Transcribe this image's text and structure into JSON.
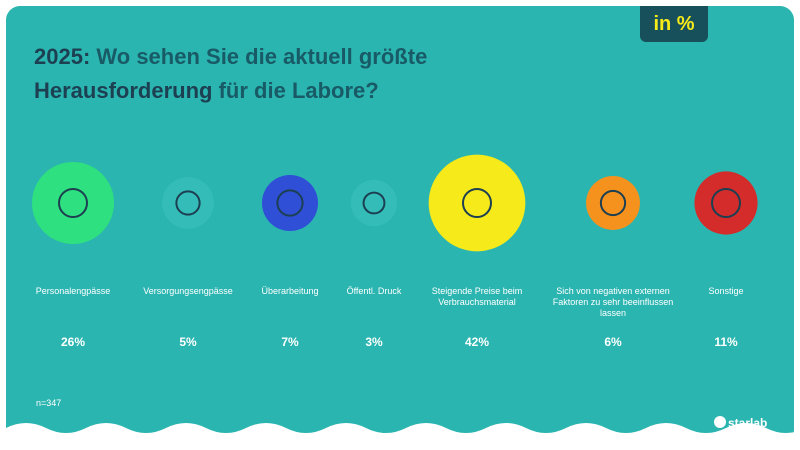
{
  "chart_data": {
    "type": "bubble",
    "title": [
      "2025:",
      "Wo sehen Sie die aktuell größte",
      "Herausforderung",
      "für die Labore?"
    ],
    "unit_badge": "in %",
    "categories": [
      "Personalengpässe",
      "Versorgungsengpässe",
      "Überarbeitung",
      "Öffentl. Druck",
      "Steigende Preise beim Verbrauchsmaterial",
      "Sich von negativen externen Faktoren zu sehr beeinflussen lassen",
      "Sonstige"
    ],
    "values": [
      26,
      5,
      7,
      3,
      42,
      6,
      11
    ],
    "value_labels": [
      "26%",
      "5%",
      "7%",
      "3%",
      "42%",
      "6%",
      "11%"
    ],
    "colors": [
      "#2ee07f",
      "#34bdb8",
      "#2f4fd6",
      "#34bdb8",
      "#f7ea1a",
      "#f5921e",
      "#d42b2b"
    ],
    "note": "n=347",
    "brand": "starlab"
  }
}
